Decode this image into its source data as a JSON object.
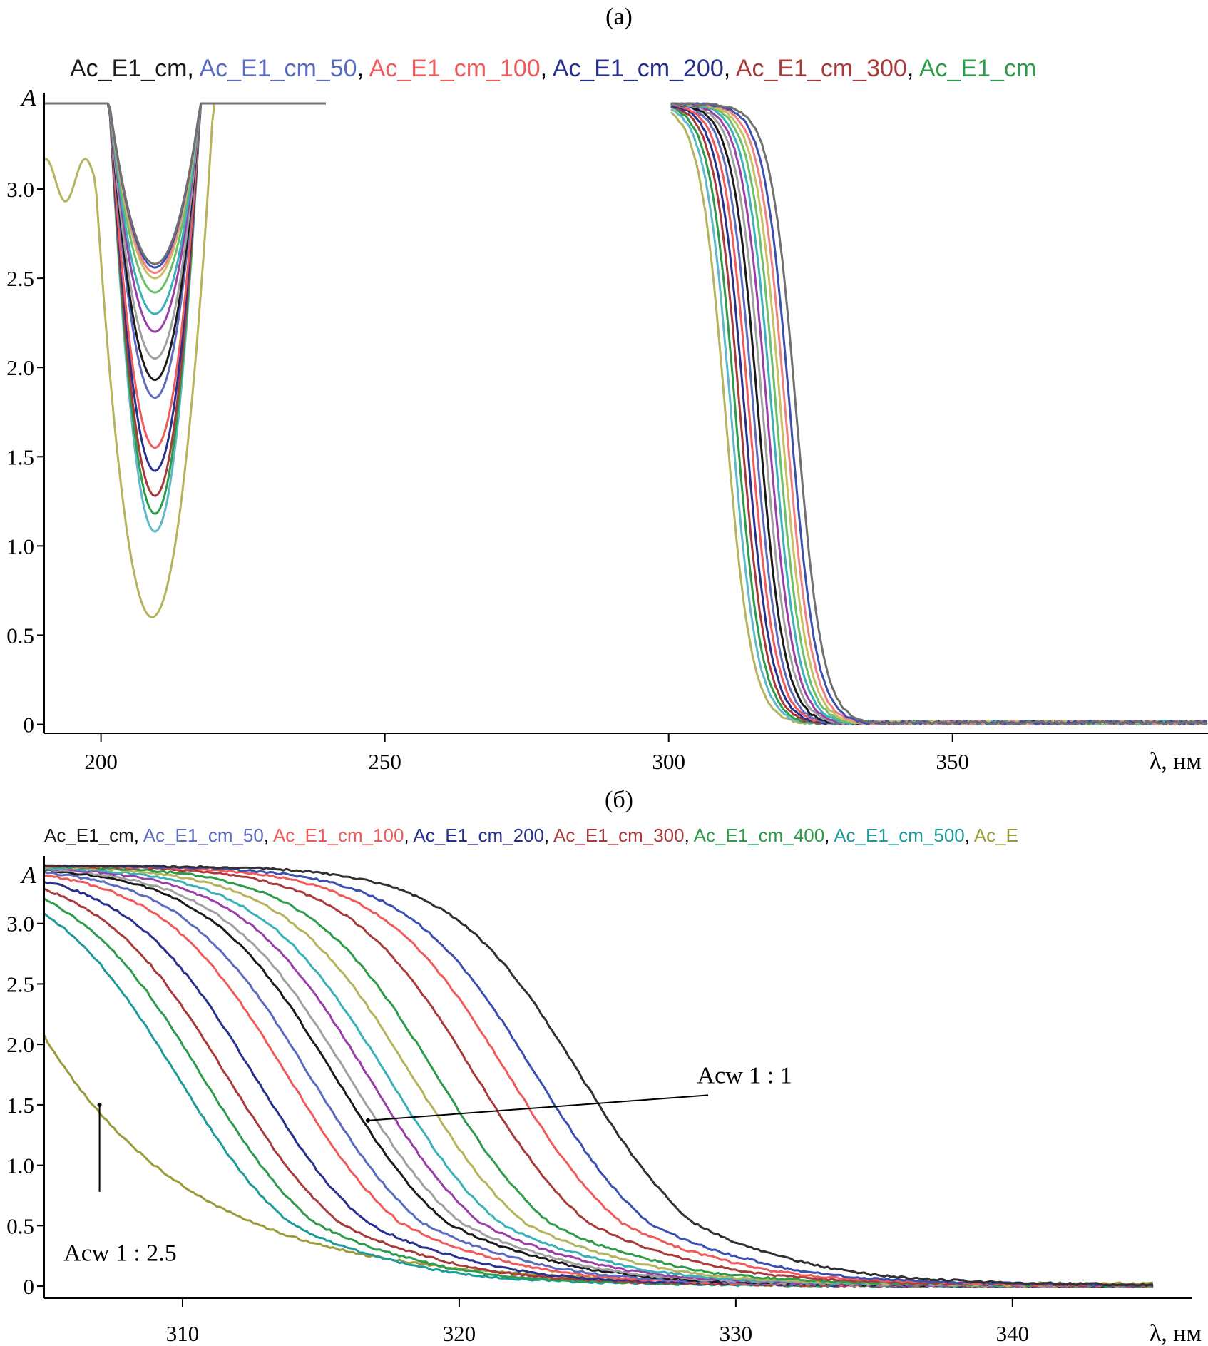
{
  "chart_data": [
    {
      "type": "line",
      "title": "(a)",
      "legend": [
        {
          "text": "Ac_E1_cm",
          "color": "#1a1a1a"
        },
        {
          "text": "Ac_E1_cm_50",
          "color": "#5b6bbf"
        },
        {
          "text": "Ac_E1_cm_100",
          "color": "#f05a5a"
        },
        {
          "text": "Ac_E1_cm_200",
          "color": "#27308c"
        },
        {
          "text": "Ac_E1_cm_300",
          "color": "#a83a3a"
        },
        {
          "text": "Ac_E1_cm",
          "color": "#2e9b4a"
        }
      ],
      "legend_separator": ", ",
      "ylabel": "A",
      "xlabel": "λ, нм",
      "xlim": [
        190,
        395
      ],
      "ylim": [
        -0.05,
        3.5
      ],
      "xticks": [
        200,
        250,
        300,
        350
      ],
      "yticks": [
        0,
        0.5,
        1.0,
        1.5,
        2.0,
        2.5,
        3.0
      ],
      "ytick_labels": [
        "0",
        "0.5",
        "1.0",
        "1.5",
        "2.0",
        "2.5",
        "3.0"
      ],
      "series": [
        {
          "color": "#b5b35c",
          "min_x": 209.0,
          "min_y": 0.6,
          "edge_x": 310.0,
          "low_base": true
        },
        {
          "color": "#5fb8c8",
          "min_x": 209.5,
          "min_y": 1.08,
          "edge_x": 311.0
        },
        {
          "color": "#2e9b4a",
          "min_x": 209.5,
          "min_y": 1.18,
          "edge_x": 311.8
        },
        {
          "color": "#a83a3a",
          "min_x": 209.5,
          "min_y": 1.28,
          "edge_x": 312.6
        },
        {
          "color": "#27308c",
          "min_x": 209.5,
          "min_y": 1.42,
          "edge_x": 313.4
        },
        {
          "color": "#f05a5a",
          "min_x": 209.5,
          "min_y": 1.55,
          "edge_x": 314.2
        },
        {
          "color": "#5b6bbf",
          "min_x": 209.5,
          "min_y": 1.83,
          "edge_x": 315.0
        },
        {
          "color": "#1a1a1a",
          "min_x": 209.5,
          "min_y": 1.93,
          "edge_x": 315.8
        },
        {
          "color": "#a0a0a0",
          "min_x": 209.5,
          "min_y": 2.05,
          "edge_x": 316.6
        },
        {
          "color": "#9b3fa8",
          "min_x": 209.5,
          "min_y": 2.2,
          "edge_x": 317.4
        },
        {
          "color": "#3ab0b8",
          "min_x": 209.5,
          "min_y": 2.3,
          "edge_x": 318.2
        },
        {
          "color": "#6bbf6b",
          "min_x": 209.5,
          "min_y": 2.42,
          "edge_x": 319.0
        },
        {
          "color": "#c8c060",
          "min_x": 209.5,
          "min_y": 2.5,
          "edge_x": 319.8
        },
        {
          "color": "#f08080",
          "min_x": 209.5,
          "min_y": 2.53,
          "edge_x": 320.6
        },
        {
          "color": "#3a4fb0",
          "min_x": 209.5,
          "min_y": 2.56,
          "edge_x": 321.4
        },
        {
          "color": "#707070",
          "min_x": 209.5,
          "min_y": 2.58,
          "edge_x": 322.5
        }
      ]
    },
    {
      "type": "line",
      "title": "(б)",
      "legend": [
        {
          "text": "Ac_E1_cm",
          "color": "#1a1a1a"
        },
        {
          "text": "Ac_E1_cm_50",
          "color": "#5b6bbf"
        },
        {
          "text": "Ac_E1_cm_100",
          "color": "#f05a5a"
        },
        {
          "text": "Ac_E1_cm_200",
          "color": "#27308c"
        },
        {
          "text": "Ac_E1_cm_300",
          "color": "#a83a3a"
        },
        {
          "text": "Ac_E1_cm_400",
          "color": "#2e9b4a"
        },
        {
          "text": "Ac_E1_cm_500",
          "color": "#1f9a9a"
        },
        {
          "text": "Ac_E",
          "color": "#9a9a3a"
        }
      ],
      "legend_separator": ", ",
      "ylabel": "A",
      "xlabel": "λ, нм",
      "xlim": [
        305,
        346.5
      ],
      "ylim": [
        -0.1,
        3.5
      ],
      "xticks": [
        310,
        320,
        330,
        340
      ],
      "yticks": [
        0,
        0.5,
        1.0,
        1.5,
        2.0,
        2.5,
        3.0
      ],
      "ytick_labels": [
        "0",
        "0.5",
        "1.0",
        "1.5",
        "2.0",
        "2.5",
        "3.0"
      ],
      "annotations": [
        {
          "text": "Acw 1 : 1",
          "x": 328.6,
          "y": 1.75,
          "arrow_from": [
            329.0,
            1.58
          ],
          "arrow_to": [
            316.7,
            1.37
          ]
        },
        {
          "text": "Acw 1 : 2.5",
          "x": 305.7,
          "y": 0.28,
          "arrow_from": [
            307.0,
            0.78
          ],
          "arrow_to": [
            307.0,
            1.5
          ]
        }
      ],
      "series": [
        {
          "color": "#9a9a3a",
          "edge_x": 303.4,
          "low_base": true
        },
        {
          "color": "#1f9a9a",
          "edge_x": 307.6
        },
        {
          "color": "#2e9b4a",
          "edge_x": 308.5
        },
        {
          "color": "#a83a3a",
          "edge_x": 309.4
        },
        {
          "color": "#27308c",
          "edge_x": 310.4
        },
        {
          "color": "#f05a5a",
          "edge_x": 311.6
        },
        {
          "color": "#5b6bbf",
          "edge_x": 312.4
        },
        {
          "color": "#1a1a1a",
          "edge_x": 313.3
        },
        {
          "color": "#a0a0a0",
          "edge_x": 313.8
        },
        {
          "color": "#9b3fa8",
          "edge_x": 314.5
        },
        {
          "color": "#3ab0b8",
          "edge_x": 315.2
        },
        {
          "color": "#b5b35c",
          "edge_x": 316.1
        },
        {
          "color": "#2e9b4a",
          "edge_x": 317.0
        },
        {
          "color": "#a83a3a",
          "edge_x": 318.4
        },
        {
          "color": "#f05a5a",
          "edge_x": 319.6
        },
        {
          "color": "#3a4fb0",
          "edge_x": 320.6
        },
        {
          "color": "#303030",
          "edge_x": 322.2
        }
      ]
    }
  ]
}
